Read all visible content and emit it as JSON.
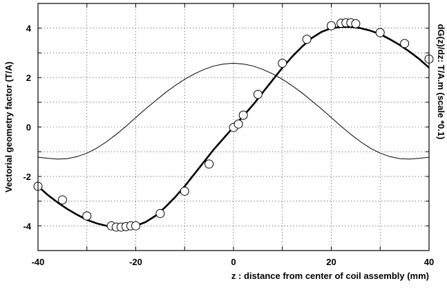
{
  "chart_data": {
    "type": "scatter",
    "xlabel": "z : distance from center of coil assembly (mm)",
    "ylabel": "Vectorial geometry factor (T/A)",
    "ylabel_right": "dG(z)/dz: T/A.m (scale *0.1)",
    "xlim": [
      -40,
      40
    ],
    "ylim": [
      -5,
      5
    ],
    "x_ticks": [
      -40,
      -20,
      0,
      20,
      40
    ],
    "y_ticks": [
      -4,
      -2,
      0,
      2,
      4
    ],
    "grid": true,
    "series": [
      {
        "style": "open-circle-markers",
        "x": [
          -40,
          -35,
          -30,
          -25,
          -24,
          -23,
          -22,
          -21,
          -20,
          -15,
          -10,
          -5,
          0,
          1,
          2,
          5,
          10,
          15,
          20,
          22,
          23,
          24,
          25,
          30,
          35,
          40
        ],
        "y": [
          -2.4,
          -2.95,
          -3.6,
          -4.0,
          -4.05,
          -4.05,
          -4.03,
          -4.0,
          -4.0,
          -3.5,
          -2.6,
          -1.5,
          -0.02,
          0.12,
          0.48,
          1.32,
          2.58,
          3.55,
          4.1,
          4.2,
          4.22,
          4.22,
          4.18,
          3.82,
          3.38,
          2.75
        ]
      },
      {
        "style": "thick-line",
        "x": [
          -40,
          -38,
          -36,
          -34,
          -32,
          -30,
          -28,
          -26,
          -24,
          -22,
          -20,
          -18,
          -16,
          -14,
          -12,
          -10,
          -8,
          -6,
          -4,
          -2,
          0,
          2,
          4,
          6,
          8,
          10,
          12,
          14,
          16,
          18,
          20,
          22,
          24,
          26,
          28,
          30,
          32,
          34,
          36,
          38,
          40
        ],
        "y": [
          -2.4,
          -2.75,
          -3.05,
          -3.32,
          -3.55,
          -3.76,
          -3.9,
          -4.0,
          -4.05,
          -4.05,
          -4.0,
          -3.85,
          -3.6,
          -3.25,
          -2.85,
          -2.4,
          -1.9,
          -1.4,
          -0.9,
          -0.45,
          0.0,
          0.45,
          0.9,
          1.4,
          1.9,
          2.4,
          2.85,
          3.25,
          3.6,
          3.85,
          4.0,
          4.05,
          4.05,
          4.0,
          3.9,
          3.76,
          3.55,
          3.32,
          3.05,
          2.75,
          2.4
        ]
      },
      {
        "style": "thin-line",
        "x": [
          -40,
          -38,
          -36,
          -34,
          -32,
          -30,
          -28,
          -26,
          -24,
          -22,
          -20,
          -18,
          -16,
          -14,
          -12,
          -10,
          -8,
          -6,
          -4,
          -2,
          0,
          2,
          4,
          6,
          8,
          10,
          12,
          14,
          16,
          18,
          20,
          22,
          24,
          26,
          28,
          30,
          32,
          34,
          36,
          38,
          40
        ],
        "y": [
          -1.22,
          -1.27,
          -1.3,
          -1.28,
          -1.2,
          -1.06,
          -0.86,
          -0.6,
          -0.3,
          0.03,
          0.38,
          0.73,
          1.06,
          1.38,
          1.67,
          1.93,
          2.15,
          2.33,
          2.47,
          2.55,
          2.58,
          2.55,
          2.47,
          2.33,
          2.15,
          1.93,
          1.67,
          1.38,
          1.06,
          0.73,
          0.38,
          0.03,
          -0.3,
          -0.6,
          -0.86,
          -1.06,
          -1.2,
          -1.28,
          -1.3,
          -1.27,
          -1.22
        ]
      }
    ]
  }
}
